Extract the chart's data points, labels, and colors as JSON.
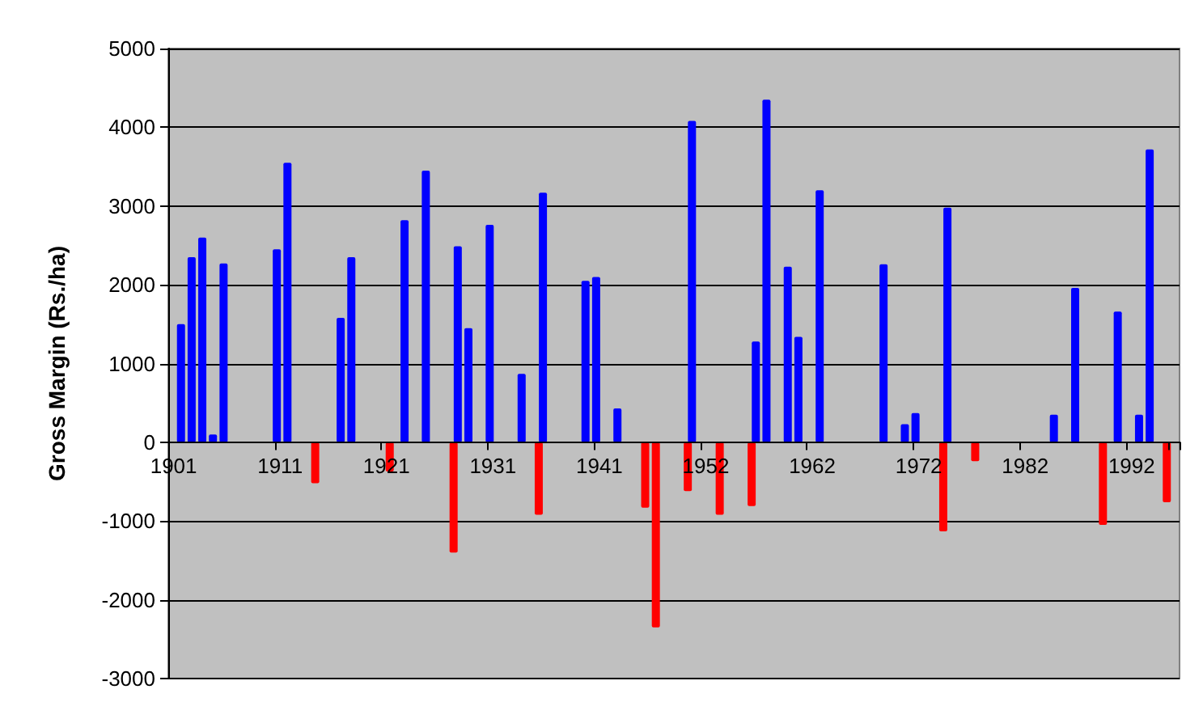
{
  "chart_data": {
    "type": "bar",
    "ylabel": "Gross Margin (Rs./ha)",
    "categories": [
      "1901",
      null,
      null,
      null,
      null,
      null,
      null,
      null,
      null,
      null,
      "1911",
      null,
      null,
      null,
      null,
      null,
      null,
      null,
      null,
      null,
      "1921",
      null,
      null,
      null,
      null,
      null,
      null,
      null,
      null,
      null,
      "1931",
      null,
      null,
      null,
      null,
      null,
      null,
      null,
      null,
      null,
      "1941",
      null,
      null,
      null,
      null,
      null,
      null,
      null,
      null,
      null,
      "1952",
      null,
      null,
      null,
      null,
      null,
      null,
      null,
      null,
      null,
      "1962",
      null,
      null,
      null,
      null,
      null,
      null,
      null,
      null,
      null,
      "1972",
      null,
      null,
      null,
      null,
      null,
      null,
      null,
      null,
      null,
      "1982",
      null,
      null,
      null,
      null,
      null,
      null,
      null,
      null,
      null,
      "1992",
      null,
      null,
      null,
      null
    ],
    "series": [
      {
        "color": "#0000ff",
        "values": [
          null,
          1500,
          2350,
          2600,
          100,
          2270,
          null,
          null,
          null,
          null,
          2450,
          3550,
          null,
          null,
          null,
          null,
          1580,
          2350,
          null,
          null,
          null,
          null,
          2820,
          null,
          3450,
          null,
          null,
          2490,
          1450,
          null,
          2760,
          null,
          null,
          870,
          null,
          3170,
          null,
          null,
          null,
          2050,
          2100,
          null,
          430,
          null,
          null,
          null,
          null,
          null,
          null,
          4080,
          null,
          null,
          null,
          null,
          null,
          1280,
          4350,
          null,
          2230,
          1340,
          null,
          3200,
          null,
          null,
          null,
          null,
          null,
          2260,
          null,
          230,
          370,
          null,
          null,
          2980,
          null,
          null,
          null,
          null,
          null,
          null,
          null,
          null,
          null,
          350,
          null,
          1960,
          null,
          null,
          null,
          1660,
          null,
          350,
          3720,
          null,
          null
        ]
      },
      {
        "color": "#ff0000",
        "values": [
          null,
          null,
          null,
          null,
          null,
          null,
          null,
          null,
          null,
          null,
          null,
          null,
          null,
          -520,
          null,
          null,
          null,
          null,
          null,
          null,
          -370,
          null,
          null,
          null,
          null,
          null,
          -1400,
          null,
          null,
          null,
          null,
          null,
          null,
          null,
          -920,
          null,
          null,
          null,
          null,
          null,
          null,
          null,
          null,
          null,
          -830,
          -2350,
          null,
          null,
          -620,
          null,
          null,
          -920,
          null,
          null,
          -810,
          null,
          null,
          null,
          null,
          null,
          null,
          null,
          null,
          null,
          null,
          null,
          null,
          null,
          null,
          null,
          null,
          null,
          -1130,
          null,
          null,
          -240,
          null,
          null,
          null,
          null,
          null,
          null,
          null,
          null,
          null,
          null,
          null,
          -1050,
          null,
          null,
          null,
          null,
          null,
          -760,
          null
        ]
      }
    ],
    "ylim": [
      -3000,
      5000
    ],
    "yticks": [
      -3000,
      -2000,
      -1000,
      0,
      1000,
      2000,
      3000,
      4000,
      5000
    ],
    "grid": "y"
  }
}
